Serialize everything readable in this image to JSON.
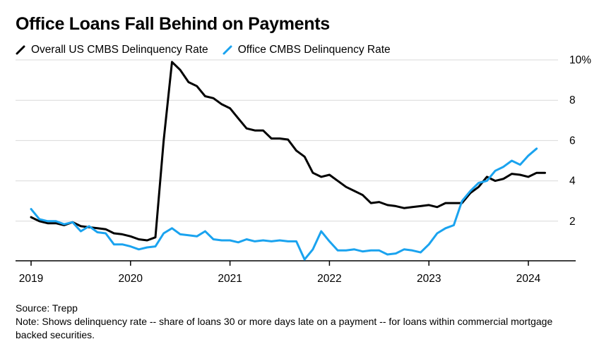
{
  "title": "Office Loans Fall Behind on Payments",
  "source": "Source: Trepp",
  "note": "Note: Shows delinquency rate -- share of loans 30 or more days late on a payment -- for loans within commercial mortgage backed securities.",
  "chart_data": {
    "type": "line",
    "title": "Office Loans Fall Behind on Payments",
    "ylim": [
      0,
      10
    ],
    "xlim": [
      2019,
      2024.5
    ],
    "y_ticks": [
      2,
      4,
      6,
      8,
      10
    ],
    "y_tick_labels": [
      "2",
      "4",
      "6",
      "8",
      "10%"
    ],
    "x_ticks": [
      2019,
      2020,
      2021,
      2022,
      2023,
      2024
    ],
    "x_tick_labels": [
      "2019",
      "2020",
      "2021",
      "2022",
      "2023",
      "2024"
    ],
    "grid": "horizontal",
    "legend_placement": "top-left",
    "series": [
      {
        "name": "Overall US CMBS Delinquency Rate",
        "color": "#000000",
        "points": [
          [
            2019.0,
            2.2
          ],
          [
            2019.083,
            2.0
          ],
          [
            2019.167,
            1.9
          ],
          [
            2019.25,
            1.9
          ],
          [
            2019.333,
            1.8
          ],
          [
            2019.417,
            1.95
          ],
          [
            2019.5,
            1.75
          ],
          [
            2019.583,
            1.7
          ],
          [
            2019.667,
            1.65
          ],
          [
            2019.75,
            1.6
          ],
          [
            2019.833,
            1.4
          ],
          [
            2019.917,
            1.35
          ],
          [
            2020.0,
            1.25
          ],
          [
            2020.083,
            1.1
          ],
          [
            2020.167,
            1.05
          ],
          [
            2020.25,
            1.2
          ],
          [
            2020.333,
            6.0
          ],
          [
            2020.417,
            9.9
          ],
          [
            2020.5,
            9.5
          ],
          [
            2020.583,
            8.9
          ],
          [
            2020.667,
            8.7
          ],
          [
            2020.75,
            8.2
          ],
          [
            2020.833,
            8.1
          ],
          [
            2020.917,
            7.8
          ],
          [
            2021.0,
            7.6
          ],
          [
            2021.083,
            7.1
          ],
          [
            2021.167,
            6.6
          ],
          [
            2021.25,
            6.5
          ],
          [
            2021.333,
            6.5
          ],
          [
            2021.417,
            6.1
          ],
          [
            2021.5,
            6.1
          ],
          [
            2021.583,
            6.05
          ],
          [
            2021.667,
            5.5
          ],
          [
            2021.75,
            5.2
          ],
          [
            2021.833,
            4.4
          ],
          [
            2021.917,
            4.2
          ],
          [
            2022.0,
            4.3
          ],
          [
            2022.083,
            4.0
          ],
          [
            2022.167,
            3.7
          ],
          [
            2022.25,
            3.5
          ],
          [
            2022.333,
            3.3
          ],
          [
            2022.417,
            2.9
          ],
          [
            2022.5,
            2.95
          ],
          [
            2022.583,
            2.8
          ],
          [
            2022.667,
            2.75
          ],
          [
            2022.75,
            2.65
          ],
          [
            2022.833,
            2.7
          ],
          [
            2022.917,
            2.75
          ],
          [
            2023.0,
            2.8
          ],
          [
            2023.083,
            2.7
          ],
          [
            2023.167,
            2.9
          ],
          [
            2023.25,
            2.9
          ],
          [
            2023.333,
            2.9
          ],
          [
            2023.417,
            3.4
          ],
          [
            2023.5,
            3.7
          ],
          [
            2023.583,
            4.2
          ],
          [
            2023.667,
            4.0
          ],
          [
            2023.75,
            4.1
          ],
          [
            2023.833,
            4.35
          ],
          [
            2023.917,
            4.3
          ],
          [
            2024.0,
            4.2
          ],
          [
            2024.083,
            4.4
          ],
          [
            2024.167,
            4.4
          ]
        ]
      },
      {
        "name": "Office CMBS Delinquency Rate",
        "color": "#1aa3ef",
        "points": [
          [
            2019.0,
            2.6
          ],
          [
            2019.083,
            2.1
          ],
          [
            2019.167,
            2.0
          ],
          [
            2019.25,
            2.0
          ],
          [
            2019.333,
            1.85
          ],
          [
            2019.417,
            1.95
          ],
          [
            2019.5,
            1.5
          ],
          [
            2019.583,
            1.75
          ],
          [
            2019.667,
            1.45
          ],
          [
            2019.75,
            1.4
          ],
          [
            2019.833,
            0.85
          ],
          [
            2019.917,
            0.85
          ],
          [
            2020.0,
            0.75
          ],
          [
            2020.083,
            0.6
          ],
          [
            2020.167,
            0.7
          ],
          [
            2020.25,
            0.75
          ],
          [
            2020.333,
            1.4
          ],
          [
            2020.417,
            1.65
          ],
          [
            2020.5,
            1.35
          ],
          [
            2020.583,
            1.3
          ],
          [
            2020.667,
            1.25
          ],
          [
            2020.75,
            1.5
          ],
          [
            2020.833,
            1.1
          ],
          [
            2020.917,
            1.05
          ],
          [
            2021.0,
            1.05
          ],
          [
            2021.083,
            0.95
          ],
          [
            2021.167,
            1.1
          ],
          [
            2021.25,
            1.0
          ],
          [
            2021.333,
            1.05
          ],
          [
            2021.417,
            1.0
          ],
          [
            2021.5,
            1.05
          ],
          [
            2021.583,
            1.0
          ],
          [
            2021.667,
            1.0
          ],
          [
            2021.75,
            0.1
          ],
          [
            2021.833,
            0.6
          ],
          [
            2021.917,
            1.5
          ],
          [
            2022.0,
            1.0
          ],
          [
            2022.083,
            0.55
          ],
          [
            2022.167,
            0.55
          ],
          [
            2022.25,
            0.6
          ],
          [
            2022.333,
            0.5
          ],
          [
            2022.417,
            0.55
          ],
          [
            2022.5,
            0.55
          ],
          [
            2022.583,
            0.35
          ],
          [
            2022.667,
            0.4
          ],
          [
            2022.75,
            0.6
          ],
          [
            2022.833,
            0.55
          ],
          [
            2022.917,
            0.45
          ],
          [
            2023.0,
            0.85
          ],
          [
            2023.083,
            1.4
          ],
          [
            2023.167,
            1.65
          ],
          [
            2023.25,
            1.8
          ],
          [
            2023.333,
            3.0
          ],
          [
            2023.417,
            3.5
          ],
          [
            2023.5,
            3.9
          ],
          [
            2023.583,
            4.0
          ],
          [
            2023.667,
            4.5
          ],
          [
            2023.75,
            4.7
          ],
          [
            2023.833,
            5.0
          ],
          [
            2023.917,
            4.8
          ],
          [
            2024.0,
            5.25
          ],
          [
            2024.083,
            5.6
          ]
        ]
      }
    ]
  }
}
